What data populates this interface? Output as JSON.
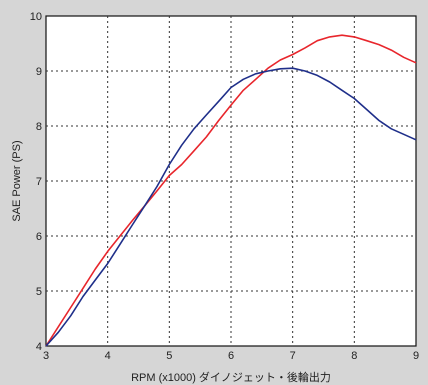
{
  "chart_data": {
    "type": "line",
    "xlabel": "RPM (x1000) ダイノジェット・後輪出力",
    "ylabel": "SAE Power (PS)",
    "xlim": [
      3,
      9
    ],
    "ylim": [
      4,
      10
    ],
    "xticks": [
      3,
      4,
      5,
      6,
      7,
      8,
      9
    ],
    "yticks": [
      4,
      5,
      6,
      7,
      8,
      9,
      10
    ],
    "grid": true,
    "series": [
      {
        "color": "#e8262c",
        "x": [
          3.0,
          3.2,
          3.4,
          3.6,
          3.8,
          4.0,
          4.2,
          4.4,
          4.6,
          4.8,
          5.0,
          5.2,
          5.4,
          5.6,
          5.8,
          6.0,
          6.2,
          6.4,
          6.6,
          6.8,
          7.0,
          7.2,
          7.4,
          7.6,
          7.8,
          8.0,
          8.2,
          8.4,
          8.6,
          8.8,
          9.0
        ],
        "y": [
          4.0,
          4.35,
          4.7,
          5.05,
          5.4,
          5.72,
          6.0,
          6.28,
          6.55,
          6.82,
          7.1,
          7.3,
          7.55,
          7.8,
          8.1,
          8.38,
          8.65,
          8.85,
          9.05,
          9.2,
          9.3,
          9.42,
          9.55,
          9.62,
          9.65,
          9.62,
          9.55,
          9.48,
          9.38,
          9.25,
          9.15
        ]
      },
      {
        "color": "#1f2f8a",
        "x": [
          3.0,
          3.2,
          3.4,
          3.6,
          3.8,
          4.0,
          4.2,
          4.4,
          4.6,
          4.8,
          5.0,
          5.2,
          5.4,
          5.6,
          5.8,
          6.0,
          6.2,
          6.4,
          6.6,
          6.8,
          7.0,
          7.2,
          7.4,
          7.6,
          7.8,
          8.0,
          8.2,
          8.4,
          8.6,
          8.8,
          9.0
        ],
        "y": [
          4.0,
          4.25,
          4.55,
          4.9,
          5.2,
          5.5,
          5.85,
          6.2,
          6.55,
          6.9,
          7.3,
          7.65,
          7.95,
          8.2,
          8.45,
          8.7,
          8.85,
          8.95,
          9.0,
          9.04,
          9.05,
          9.0,
          8.92,
          8.8,
          8.65,
          8.5,
          8.3,
          8.1,
          7.95,
          7.85,
          7.75
        ]
      }
    ]
  }
}
